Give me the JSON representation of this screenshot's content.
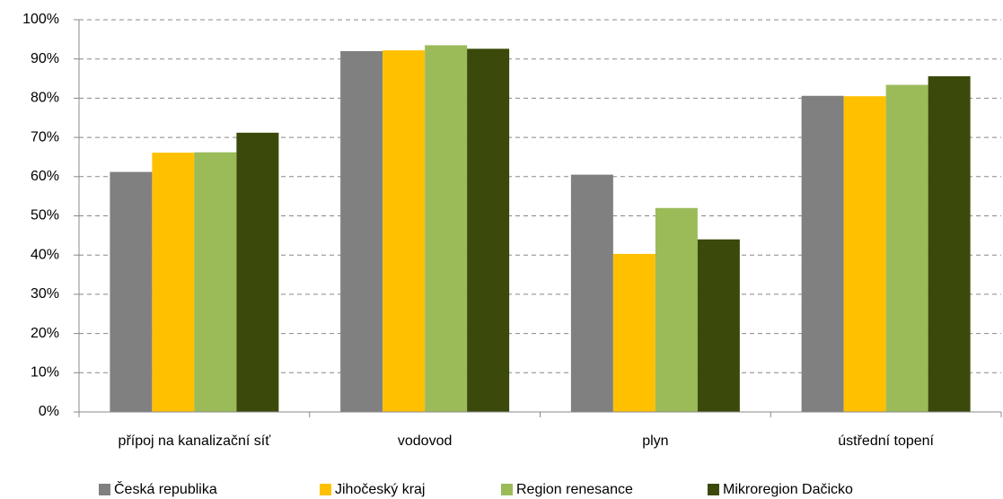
{
  "chart_data": {
    "type": "bar",
    "categories": [
      "přípoj na kanalizační síť",
      "vodovod",
      "plyn",
      "ústřední topení"
    ],
    "series": [
      {
        "name": "Česká republika",
        "color": "#808080",
        "values": [
          61.2,
          92,
          60.5,
          80.6
        ]
      },
      {
        "name": "Jihočeský kraj",
        "color": "#ffc000",
        "values": [
          66.1,
          92.2,
          40.3,
          80.5
        ]
      },
      {
        "name": "Region renesance",
        "color": "#9bbb59",
        "values": [
          66.2,
          93.5,
          52,
          83.4
        ]
      },
      {
        "name": "Mikroregion Dačicko",
        "color": "#3b4a0a",
        "values": [
          71.2,
          92.6,
          44,
          85.6
        ]
      }
    ],
    "ylim": [
      0,
      100
    ],
    "yticks": [
      {
        "value": 0,
        "label": "0%"
      },
      {
        "value": 10,
        "label": "10%"
      },
      {
        "value": 20,
        "label": "20%"
      },
      {
        "value": 30,
        "label": "30%"
      },
      {
        "value": 40,
        "label": "40%"
      },
      {
        "value": 50,
        "label": "50%"
      },
      {
        "value": 60,
        "label": "60%"
      },
      {
        "value": 70,
        "label": "70%"
      },
      {
        "value": 80,
        "label": "80%"
      },
      {
        "value": 90,
        "label": "90%"
      },
      {
        "value": 100,
        "label": "100%"
      }
    ],
    "grid": true,
    "legend": "bottom"
  }
}
